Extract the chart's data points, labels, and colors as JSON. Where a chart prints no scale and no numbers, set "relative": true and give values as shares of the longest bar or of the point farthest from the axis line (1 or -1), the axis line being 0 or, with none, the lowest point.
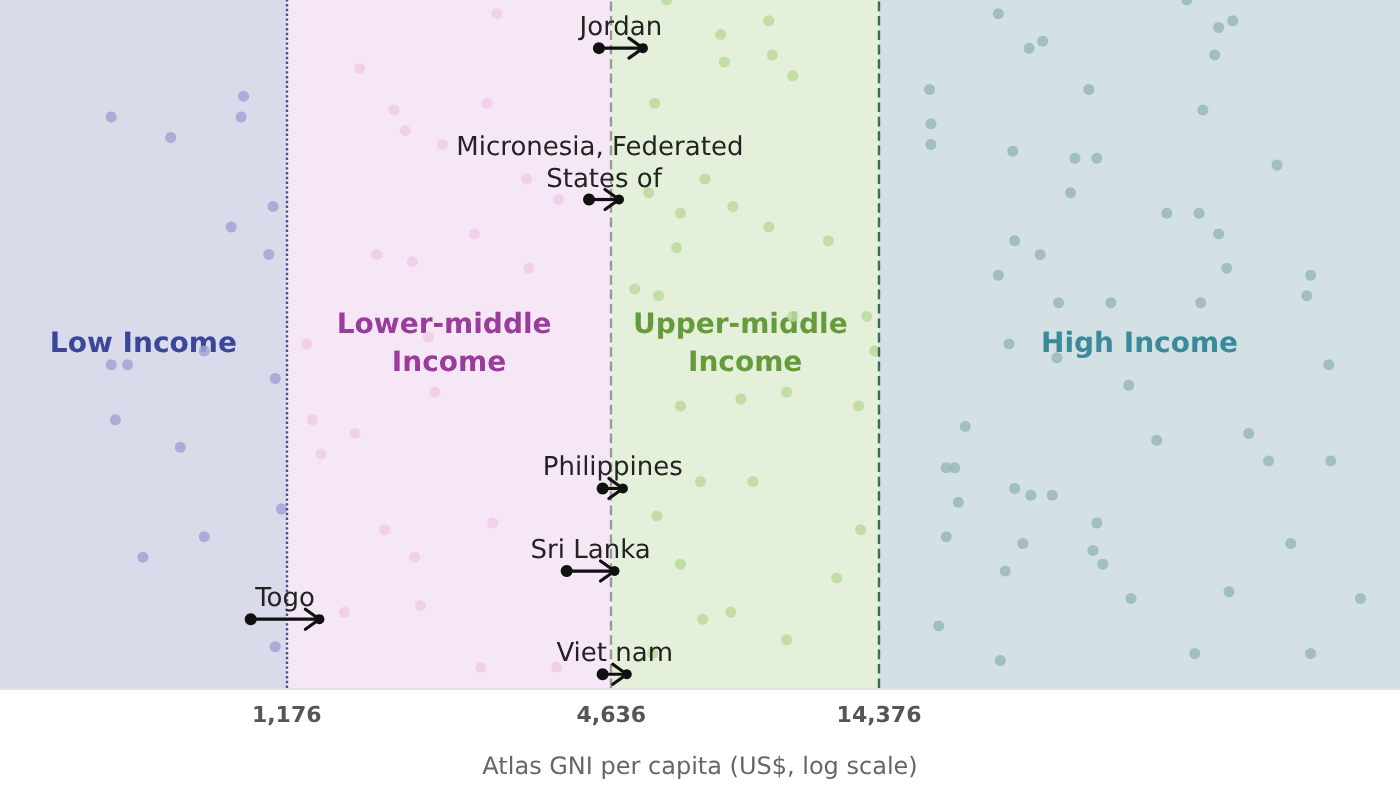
{
  "chart_data": {
    "type": "scatter",
    "xlabel": "Atlas GNI per capita (US$, log scale)",
    "log": "x",
    "xlim": [
      350,
      130000
    ],
    "xticks": [
      {
        "value": 1176,
        "label": "1,176"
      },
      {
        "value": 4636,
        "label": "4,636"
      },
      {
        "value": 14376,
        "label": "14,376"
      }
    ],
    "relative": true,
    "tick_labels": "x",
    "grid": false,
    "legend": false,
    "marker": "circle",
    "bands": [
      {
        "axis": "x",
        "from": 350,
        "to": 1176,
        "label": "Low Income",
        "color": "#d9dbeb"
      },
      {
        "axis": "x",
        "from": 1176,
        "to": 4636,
        "label": "Lower-middle Income",
        "color": "#f6e7f6"
      },
      {
        "axis": "x",
        "from": 4636,
        "to": 14376,
        "label": "Upper-middle Income",
        "color": "#e4f0da"
      },
      {
        "axis": "x",
        "from": 14376,
        "to": 130000,
        "label": "High Income",
        "color": "#d3e1e4"
      }
    ],
    "ref_lines": [
      {
        "axis": "x",
        "value": 1176,
        "color": "#4b4f8f",
        "line_style": "dotted"
      },
      {
        "axis": "x",
        "value": 4636,
        "color": "#9a9a9a",
        "line_style": "dashed"
      },
      {
        "axis": "x",
        "value": 14376,
        "color": "#3d6b50",
        "line_style": "dashed"
      }
    ],
    "series": [
      {
        "color": "#a0a5d3",
        "x": [
          560,
          720,
          980,
          970,
          1110,
          930,
          1090,
          560,
          600,
          830,
          1120,
          570,
          750,
          1150,
          830,
          640,
          1120
        ],
        "values": [
          0.83,
          0.8,
          0.86,
          0.83,
          0.7,
          0.67,
          0.63,
          0.47,
          0.47,
          0.49,
          0.45,
          0.39,
          0.35,
          0.26,
          0.22,
          0.19,
          0.06
        ]
      },
      {
        "color": "#f0cbea",
        "x": [
          1600,
          1850,
          1940,
          2270,
          1720,
          2000,
          2600,
          1280,
          2140,
          2200,
          1310,
          1360,
          1570,
          1780,
          2020,
          2070,
          1500,
          2860,
          2740,
          3240,
          3710,
          3270,
          2810,
          3680,
          2670
        ],
        "values": [
          0.9,
          0.84,
          0.81,
          0.79,
          0.63,
          0.62,
          0.66,
          0.5,
          0.51,
          0.43,
          0.39,
          0.34,
          0.37,
          0.23,
          0.19,
          0.12,
          0.11,
          0.98,
          0.85,
          0.74,
          0.71,
          0.61,
          0.24,
          0.03,
          0.03
        ]
      },
      {
        "color": "#bcda9c",
        "x": [
          5860,
          7360,
          9020,
          7480,
          9160,
          9980,
          5570,
          5430,
          6890,
          6210,
          7750,
          9020,
          6110,
          11610,
          5120,
          5660,
          9980,
          13650,
          14120,
          6210,
          9730,
          8020,
          13180,
          6760,
          8430,
          5620,
          6210,
          7680,
          13300,
          12020,
          6820,
          9730,
          5520
        ],
        "values": [
          1.0,
          0.95,
          0.97,
          0.91,
          0.92,
          0.89,
          0.85,
          0.72,
          0.74,
          0.69,
          0.7,
          0.67,
          0.64,
          0.65,
          0.58,
          0.57,
          0.54,
          0.54,
          0.49,
          0.41,
          0.43,
          0.42,
          0.41,
          0.3,
          0.3,
          0.25,
          0.18,
          0.11,
          0.23,
          0.16,
          0.1,
          0.07,
          0.05
        ]
      },
      {
        "color": "#98b9ba",
        "x": [
          23800,
          52800,
          60400,
          64100,
          27100,
          28700,
          59400,
          17800,
          34900,
          56500,
          25300,
          32900,
          36100,
          77300,
          32300,
          25500,
          28400,
          48500,
          55600,
          60400,
          23800,
          62500,
          89100,
          87700,
          24900,
          30700,
          38300,
          56000,
          30500,
          41300,
          96200,
          17900,
          17900,
          20700,
          19100,
          19800,
          20100,
          19100,
          25500,
          27300,
          29900,
          36100,
          35500,
          37000,
          26400,
          24500,
          46500,
          68600,
          74600,
          97000,
          81900,
          63100,
          110000,
          18500,
          24000,
          54600,
          89100,
          41700
        ],
        "values": [
          0.98,
          1.0,
          0.96,
          0.97,
          0.93,
          0.94,
          0.92,
          0.87,
          0.87,
          0.84,
          0.78,
          0.77,
          0.77,
          0.76,
          0.72,
          0.65,
          0.63,
          0.69,
          0.69,
          0.66,
          0.6,
          0.61,
          0.6,
          0.57,
          0.5,
          0.56,
          0.56,
          0.56,
          0.48,
          0.44,
          0.47,
          0.82,
          0.79,
          0.38,
          0.32,
          0.32,
          0.27,
          0.22,
          0.29,
          0.28,
          0.28,
          0.24,
          0.2,
          0.18,
          0.21,
          0.17,
          0.36,
          0.37,
          0.33,
          0.33,
          0.21,
          0.14,
          0.13,
          0.09,
          0.04,
          0.05,
          0.05,
          0.13
        ]
      },
      {
        "type": "line",
        "name": "Jordan",
        "color": "#111111",
        "x": [
          4400,
          5300
        ],
        "values": [
          0.93,
          0.93
        ]
      },
      {
        "type": "line",
        "name": "Micronesia, Federated States of",
        "color": "#111111",
        "x": [
          4220,
          4790
        ],
        "values": [
          0.71,
          0.71
        ]
      },
      {
        "type": "line",
        "name": "Philippines",
        "color": "#111111",
        "x": [
          4470,
          4870
        ],
        "values": [
          0.29,
          0.29
        ]
      },
      {
        "type": "line",
        "name": "Sri Lanka",
        "color": "#111111",
        "x": [
          3840,
          4700
        ],
        "values": [
          0.17,
          0.17
        ]
      },
      {
        "type": "line",
        "name": "Viet nam",
        "color": "#111111",
        "x": [
          4470,
          4950
        ],
        "values": [
          0.02,
          0.02
        ]
      },
      {
        "type": "line",
        "name": "Togo",
        "color": "#111111",
        "x": [
          1010,
          1350
        ],
        "values": [
          0.1,
          0.1
        ]
      }
    ]
  }
}
